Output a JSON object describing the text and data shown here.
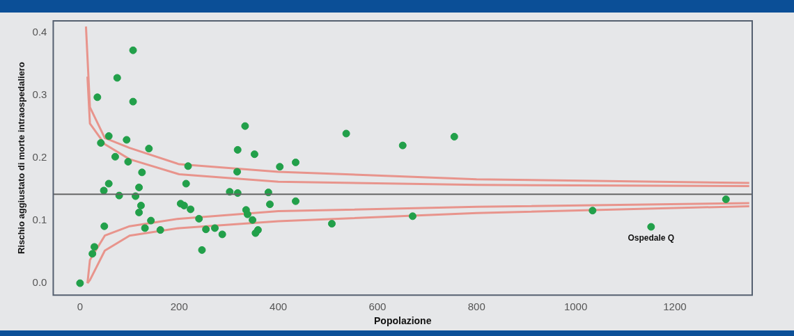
{
  "chart_data": {
    "type": "scatter",
    "xlabel": "Popolazione",
    "ylabel": "Rischio aggiustato di morte intraospedaliero",
    "xlim": [
      -54,
      1356
    ],
    "ylim": [
      -0.019,
      0.419
    ],
    "xticks": [
      0,
      200,
      400,
      600,
      800,
      1000,
      1200
    ],
    "yticks": [
      {
        "value": 0,
        "label": "0.0"
      },
      {
        "value": 0.1,
        "label": "0.1"
      },
      {
        "value": 0.2,
        "label": "0.2"
      },
      {
        "value": 0.3,
        "label": "0.3"
      },
      {
        "value": 0.4,
        "label": "0.4"
      }
    ],
    "series": [
      {
        "type": "scatter",
        "marker": "circle",
        "color": "#22a04a",
        "x": [
          107,
          75,
          35,
          107,
          333,
          58,
          42,
          94,
          139,
          318,
          352,
          71,
          97,
          218,
          403,
          435,
          125,
          317,
          58,
          214,
          48,
          119,
          79,
          112,
          302,
          318,
          380,
          123,
          119,
          203,
          210,
          223,
          383,
          435,
          143,
          240,
          335,
          338,
          348,
          49,
          131,
          162,
          254,
          272,
          287,
          359,
          354,
          29,
          25,
          246,
          0,
          508,
          537,
          651,
          671,
          755,
          1034,
          1152,
          1303
        ],
        "values": [
          0.372,
          0.328,
          0.297,
          0.29,
          0.251,
          0.235,
          0.224,
          0.229,
          0.215,
          0.213,
          0.206,
          0.202,
          0.194,
          0.187,
          0.186,
          0.193,
          0.177,
          0.178,
          0.159,
          0.159,
          0.148,
          0.153,
          0.14,
          0.139,
          0.146,
          0.144,
          0.145,
          0.124,
          0.113,
          0.127,
          0.124,
          0.118,
          0.126,
          0.131,
          0.1,
          0.103,
          0.117,
          0.11,
          0.101,
          0.091,
          0.088,
          0.085,
          0.086,
          0.088,
          0.078,
          0.085,
          0.08,
          0.058,
          0.047,
          0.053,
          0.0,
          0.095,
          0.239,
          0.22,
          0.107,
          0.234,
          0.116,
          0.09,
          0.134
        ]
      },
      {
        "type": "line",
        "marker": "none",
        "color": "#e8948c",
        "x": [
          12,
          20,
          50,
          100,
          200,
          400,
          800,
          1350
        ],
        "values": [
          0.41,
          0.281,
          0.232,
          0.216,
          0.19,
          0.178,
          0.166,
          0.16
        ]
      },
      {
        "type": "line",
        "marker": "none",
        "color": "#e8948c",
        "x": [
          15,
          20,
          50,
          100,
          200,
          400,
          800,
          1350
        ],
        "values": [
          0.33,
          0.255,
          0.222,
          0.198,
          0.174,
          0.162,
          0.157,
          0.155
        ]
      },
      {
        "type": "line",
        "marker": "none",
        "color": "#e8948c",
        "x": [
          15,
          20,
          50,
          100,
          200,
          400,
          800,
          1350
        ],
        "values": [
          0.0,
          0.037,
          0.076,
          0.091,
          0.103,
          0.115,
          0.122,
          0.128
        ]
      },
      {
        "type": "line",
        "marker": "none",
        "color": "#e8948c",
        "x": [
          15,
          20,
          50,
          100,
          200,
          400,
          800,
          1350
        ],
        "values": [
          0.0,
          0.005,
          0.052,
          0.076,
          0.088,
          0.099,
          0.112,
          0.123
        ]
      }
    ],
    "ref_lines": [
      {
        "axis": "y",
        "value": 0.142,
        "color": "#666666"
      }
    ],
    "annotations": [
      {
        "text": "Ospedale Q",
        "x": 1152,
        "y": 0.09
      }
    ]
  }
}
